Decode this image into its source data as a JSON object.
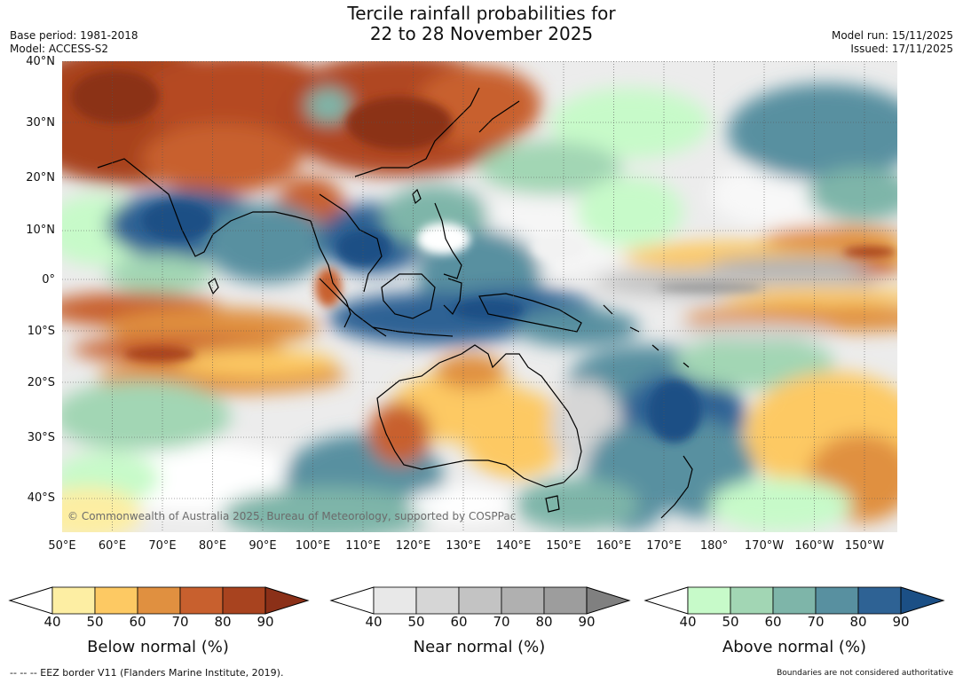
{
  "title_line1": "Tercile rainfall probabilities for",
  "title_line2": "22 to 28 November 2025",
  "base_period": "Base period: 1981-2018",
  "model": "Model: ACCESS-S2",
  "model_run": "Model run: 15/11/2025",
  "issued": "Issued: 17/11/2025",
  "lat_labels": [
    "40°N",
    "30°N",
    "20°N",
    "10°N",
    "0°",
    "10°S",
    "20°S",
    "30°S",
    "40°S"
  ],
  "lon_labels": [
    "50°E",
    "60°E",
    "70°E",
    "80°E",
    "90°E",
    "100°E",
    "110°E",
    "120°E",
    "130°E",
    "140°E",
    "150°E",
    "160°E",
    "170°E",
    "180°",
    "170°W",
    "160°W",
    "150°W"
  ],
  "copyright": "© Commonwealth of Australia 2025, Bureau of Meteorology, supported by COSPPac",
  "colorbars": {
    "below": {
      "title": "Below normal (%)",
      "ticks": [
        "40",
        "50",
        "60",
        "70",
        "80",
        "90"
      ],
      "colors": [
        "#fdeea3",
        "#fdc963",
        "#e09040",
        "#c8602e",
        "#a8431f",
        "#8b3018"
      ]
    },
    "near": {
      "title": "Near normal (%)",
      "ticks": [
        "40",
        "50",
        "60",
        "70",
        "80",
        "90"
      ],
      "colors": [
        "#e8e8e8",
        "#d6d6d6",
        "#c3c3c3",
        "#b0b0b0",
        "#9d9d9d",
        "#808080"
      ]
    },
    "above": {
      "title": "Above normal (%)",
      "ticks": [
        "40",
        "50",
        "60",
        "70",
        "80",
        "90"
      ],
      "colors": [
        "#c7fac9",
        "#a2d6b4",
        "#7eb5a9",
        "#5890a0",
        "#2e6294",
        "#1b4f85"
      ]
    }
  },
  "eez_note": "--  --  -- EEZ border V11 (Flanders Marine Institute, 2019).",
  "authority_note": "Boundaries are not considered authoritative"
}
